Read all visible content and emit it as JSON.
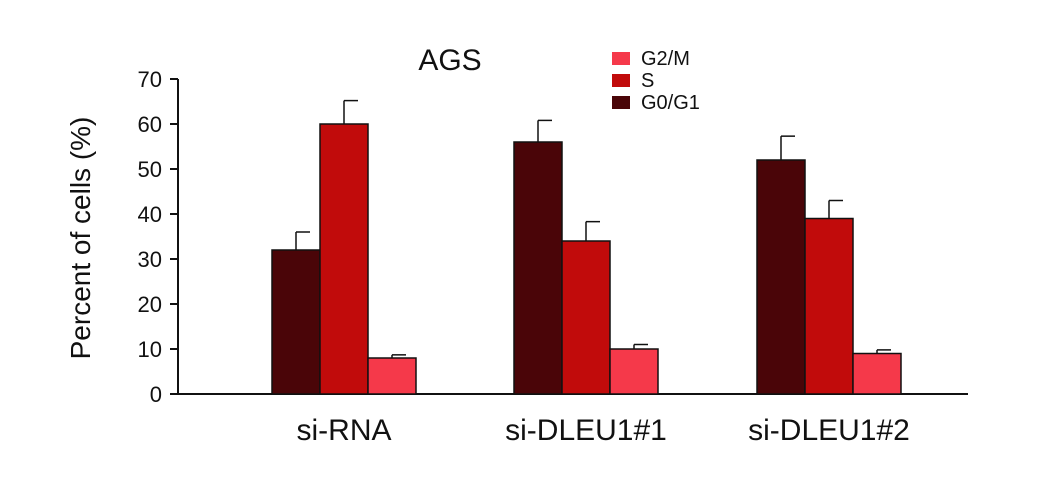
{
  "chart_data": {
    "type": "bar",
    "title": "AGS",
    "xlabel": "",
    "ylabel": "Percent of cells (%)",
    "ylim": [
      0,
      70
    ],
    "yticks": [
      0,
      10,
      20,
      30,
      40,
      50,
      60,
      70
    ],
    "categories": [
      "si-RNA",
      "si-DLEU1#1",
      "si-DLEU1#2"
    ],
    "series": [
      {
        "name": "G0/G1",
        "color": "#4a0508",
        "values": [
          32,
          56,
          52
        ],
        "errors": [
          4,
          4.8,
          5.3
        ]
      },
      {
        "name": "S",
        "color": "#c10b0b",
        "values": [
          60,
          34,
          39
        ],
        "errors": [
          5.2,
          4.3,
          4
        ]
      },
      {
        "name": "G2/M",
        "color": "#f5394a",
        "values": [
          8,
          10,
          9
        ],
        "errors": [
          0.7,
          1,
          0.8
        ]
      }
    ],
    "legend_order": [
      "G2/M",
      "S",
      "G0/G1"
    ],
    "legend_position": "top-center",
    "grid": false
  }
}
